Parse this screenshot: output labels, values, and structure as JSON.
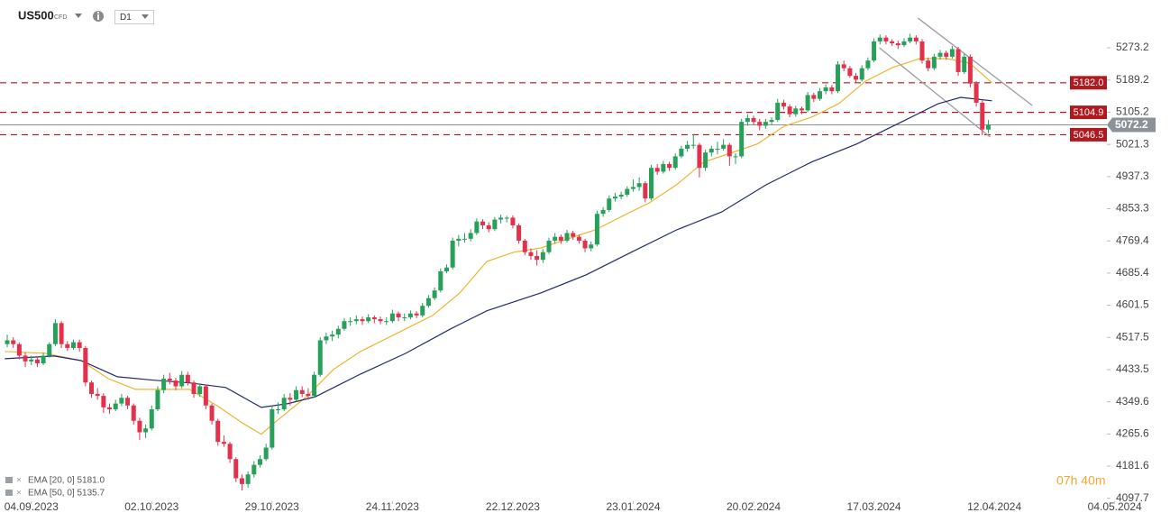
{
  "chart_data": {
    "type": "candlestick",
    "symbol": "US500",
    "instrument": "CFD",
    "timeframe": "D1",
    "countdown": "07h 40m",
    "up_color": "#27a05a",
    "down_color": "#e3314b",
    "xlim": [
      -1.2,
      182.7
    ],
    "ylim": [
      4090,
      5398
    ],
    "xticks": [
      {
        "value": 4,
        "label": "04.09.2023"
      },
      {
        "value": 24,
        "label": "02.10.2023"
      },
      {
        "value": 44,
        "label": "29.10.2023"
      },
      {
        "value": 64,
        "label": "24.11.2023"
      },
      {
        "value": 84,
        "label": "22.12.2023"
      },
      {
        "value": 104,
        "label": "23.01.2024"
      },
      {
        "value": 124,
        "label": "20.02.2024"
      },
      {
        "value": 144,
        "label": "17.03.2024"
      },
      {
        "value": 164,
        "label": "12.04.2024"
      },
      {
        "value": 184,
        "label": "04.05.2024"
      }
    ],
    "yticks": [
      5273.2,
      5189.2,
      5105.2,
      5021.3,
      4937.3,
      4853.3,
      4769.4,
      4685.4,
      4601.5,
      4517.5,
      4433.5,
      4349.6,
      4265.6,
      4181.6,
      4097.7
    ],
    "levels": [
      {
        "value": 5182,
        "label": "5182.0"
      },
      5104.9,
      5046.5
    ],
    "level_color": "#b0191e",
    "current_price": 5072.2,
    "current_color": "#8c9398",
    "trendline_color": "#9b9ea2",
    "trendlines": [
      {
        "x": [
          151.3,
          170.3
        ],
        "y": [
          5350.8,
          5122.8
        ]
      },
      {
        "x": [
          144.9,
          163.3
        ],
        "y": [
          5273.2,
          5040.5
        ]
      }
    ],
    "series": [
      {
        "name": "EMA [20, 0] 5181.0",
        "color": "#f0b432",
        "x": [
          -0.4,
          6.3,
          12.3,
          16.8,
          21.3,
          25.8,
          30.3,
          34.8,
          39.2,
          42.2,
          45.2,
          49.7,
          54.2,
          58.7,
          64.7,
          70.7,
          75.2,
          79.7,
          84.2,
          88.7,
          93.2,
          97.7,
          102.2,
          106.7,
          111.2,
          115.7,
          120.1,
          124.6,
          129.1,
          133.6,
          138.1,
          142.6,
          147.1,
          151.6,
          156.1,
          159.9,
          163.6
        ],
        "values": [
          4481,
          4476,
          4457,
          4410,
          4382,
          4382,
          4382,
          4340,
          4293,
          4265,
          4305,
          4363,
          4434,
          4481,
          4528,
          4575,
          4634,
          4716,
          4740,
          4751,
          4775,
          4798,
          4834,
          4869,
          4916,
          4975,
          4998,
          5022,
          5069,
          5092,
          5127,
          5186,
          5222,
          5245,
          5245,
          5233,
          5182
        ]
      },
      {
        "name": "EMA [50, 0] 5135.7",
        "color": "#232a6e",
        "x": [
          -0.4,
          7.8,
          12.3,
          18.3,
          24.3,
          30.3,
          36.3,
          42.2,
          46.7,
          51.2,
          58.7,
          66.2,
          73.7,
          79.7,
          88.7,
          96.2,
          103.7,
          111.2,
          118.7,
          126.1,
          133.6,
          141.1,
          148.6,
          154.6,
          158.4,
          161.3,
          163.6
        ],
        "values": [
          4462,
          4469,
          4457,
          4415,
          4406,
          4399,
          4387,
          4335,
          4345,
          4363,
          4422,
          4476,
          4540,
          4587,
          4634,
          4681,
          4740,
          4798,
          4845,
          4916,
          4975,
          5022,
          5080,
          5127,
          5144,
          5139,
          5135
        ]
      }
    ],
    "candles": [
      [
        4500,
        4525,
        4492,
        4510
      ],
      [
        4510,
        4518,
        4490,
        4500
      ],
      [
        4500,
        4505,
        4460,
        4470
      ],
      [
        4470,
        4478,
        4440,
        4455
      ],
      [
        4455,
        4470,
        4445,
        4460
      ],
      [
        4460,
        4468,
        4440,
        4450
      ],
      [
        4450,
        4478,
        4445,
        4470
      ],
      [
        4470,
        4505,
        4465,
        4500
      ],
      [
        4500,
        4565,
        4495,
        4555
      ],
      [
        4555,
        4560,
        4490,
        4500
      ],
      [
        4500,
        4508,
        4482,
        4490
      ],
      [
        4490,
        4512,
        4485,
        4505
      ],
      [
        4505,
        4512,
        4480,
        4490
      ],
      [
        4490,
        4495,
        4390,
        4400
      ],
      [
        4400,
        4405,
        4360,
        4370
      ],
      [
        4370,
        4385,
        4355,
        4365
      ],
      [
        4365,
        4372,
        4320,
        4335
      ],
      [
        4335,
        4345,
        4318,
        4330
      ],
      [
        4330,
        4355,
        4325,
        4345
      ],
      [
        4345,
        4370,
        4338,
        4360
      ],
      [
        4360,
        4365,
        4330,
        4340
      ],
      [
        4340,
        4345,
        4290,
        4300
      ],
      [
        4300,
        4308,
        4250,
        4270
      ],
      [
        4270,
        4290,
        4255,
        4280
      ],
      [
        4280,
        4340,
        4275,
        4330
      ],
      [
        4330,
        4390,
        4325,
        4380
      ],
      [
        4380,
        4420,
        4372,
        4410
      ],
      [
        4410,
        4425,
        4395,
        4405
      ],
      [
        4405,
        4412,
        4380,
        4390
      ],
      [
        4390,
        4430,
        4385,
        4420
      ],
      [
        4420,
        4428,
        4392,
        4400
      ],
      [
        4400,
        4405,
        4360,
        4370
      ],
      [
        4370,
        4398,
        4362,
        4390
      ],
      [
        4390,
        4395,
        4330,
        4340
      ],
      [
        4340,
        4345,
        4290,
        4300
      ],
      [
        4300,
        4305,
        4235,
        4245
      ],
      [
        4245,
        4262,
        4232,
        4240
      ],
      [
        4240,
        4245,
        4190,
        4200
      ],
      [
        4200,
        4205,
        4140,
        4150
      ],
      [
        4150,
        4160,
        4118,
        4135
      ],
      [
        4135,
        4168,
        4125,
        4160
      ],
      [
        4160,
        4195,
        4152,
        4185
      ],
      [
        4185,
        4210,
        4178,
        4200
      ],
      [
        4200,
        4240,
        4195,
        4230
      ],
      [
        4230,
        4340,
        4225,
        4330
      ],
      [
        4330,
        4348,
        4318,
        4330
      ],
      [
        4330,
        4370,
        4325,
        4360
      ],
      [
        4360,
        4372,
        4340,
        4355
      ],
      [
        4355,
        4390,
        4350,
        4380
      ],
      [
        4380,
        4390,
        4362,
        4370
      ],
      [
        4370,
        4385,
        4355,
        4365
      ],
      [
        4365,
        4428,
        4360,
        4420
      ],
      [
        4420,
        4518,
        4415,
        4510
      ],
      [
        4510,
        4530,
        4500,
        4520
      ],
      [
        4520,
        4535,
        4508,
        4525
      ],
      [
        4525,
        4548,
        4515,
        4540
      ],
      [
        4540,
        4568,
        4535,
        4560
      ],
      [
        4560,
        4570,
        4548,
        4560
      ],
      [
        4560,
        4575,
        4552,
        4565
      ],
      [
        4565,
        4572,
        4550,
        4560
      ],
      [
        4560,
        4578,
        4555,
        4570
      ],
      [
        4570,
        4575,
        4555,
        4565
      ],
      [
        4565,
        4572,
        4552,
        4560
      ],
      [
        4560,
        4570,
        4550,
        4560
      ],
      [
        4560,
        4590,
        4555,
        4580
      ],
      [
        4580,
        4585,
        4560,
        4570
      ],
      [
        4570,
        4580,
        4560,
        4570
      ],
      [
        4570,
        4588,
        4565,
        4580
      ],
      [
        4580,
        4586,
        4568,
        4575
      ],
      [
        4575,
        4608,
        4570,
        4600
      ],
      [
        4600,
        4628,
        4595,
        4620
      ],
      [
        4620,
        4648,
        4615,
        4640
      ],
      [
        4640,
        4698,
        4635,
        4690
      ],
      [
        4690,
        4708,
        4685,
        4700
      ],
      [
        4700,
        4778,
        4695,
        4770
      ],
      [
        4770,
        4785,
        4755,
        4775
      ],
      [
        4775,
        4790,
        4765,
        4775
      ],
      [
        4775,
        4800,
        4768,
        4790
      ],
      [
        4790,
        4828,
        4785,
        4820
      ],
      [
        4820,
        4826,
        4800,
        4810
      ],
      [
        4810,
        4818,
        4792,
        4800
      ],
      [
        4800,
        4832,
        4795,
        4825
      ],
      [
        4825,
        4838,
        4815,
        4830
      ],
      [
        4830,
        4835,
        4818,
        4830
      ],
      [
        4830,
        4836,
        4802,
        4810
      ],
      [
        4810,
        4815,
        4762,
        4770
      ],
      [
        4770,
        4775,
        4732,
        4740
      ],
      [
        4740,
        4750,
        4720,
        4730
      ],
      [
        4730,
        4745,
        4705,
        4720
      ],
      [
        4720,
        4748,
        4712,
        4740
      ],
      [
        4740,
        4778,
        4735,
        4770
      ],
      [
        4770,
        4790,
        4762,
        4780
      ],
      [
        4780,
        4786,
        4762,
        4770
      ],
      [
        4770,
        4798,
        4765,
        4790
      ],
      [
        4790,
        4796,
        4772,
        4780
      ],
      [
        4780,
        4786,
        4762,
        4770
      ],
      [
        4770,
        4775,
        4740,
        4750
      ],
      [
        4750,
        4768,
        4742,
        4760
      ],
      [
        4760,
        4848,
        4755,
        4840
      ],
      [
        4840,
        4858,
        4832,
        4850
      ],
      [
        4850,
        4888,
        4845,
        4880
      ],
      [
        4880,
        4895,
        4872,
        4885
      ],
      [
        4885,
        4898,
        4878,
        4890
      ],
      [
        4890,
        4912,
        4884,
        4905
      ],
      [
        4905,
        4930,
        4898,
        4910
      ],
      [
        4910,
        4935,
        4900,
        4920
      ],
      [
        4920,
        4925,
        4870,
        4880
      ],
      [
        4880,
        4968,
        4875,
        4960
      ],
      [
        4960,
        4970,
        4942,
        4950
      ],
      [
        4950,
        4978,
        4945,
        4970
      ],
      [
        4970,
        4976,
        4952,
        4960
      ],
      [
        4960,
        4998,
        4955,
        4990
      ],
      [
        4990,
        5018,
        4985,
        5010
      ],
      [
        5010,
        5030,
        5002,
        5020
      ],
      [
        5020,
        5048,
        5010,
        5020
      ],
      [
        5020,
        5025,
        4935,
        4960
      ],
      [
        4960,
        5008,
        4952,
        5000
      ],
      [
        5000,
        5018,
        4990,
        5010
      ],
      [
        5010,
        5028,
        4995,
        5010
      ],
      [
        5010,
        5035,
        5005,
        5020
      ],
      [
        5020,
        5025,
        4965,
        4990
      ],
      [
        4990,
        4998,
        4970,
        4990
      ],
      [
        4990,
        5088,
        4985,
        5080
      ],
      [
        5080,
        5100,
        5070,
        5090
      ],
      [
        5090,
        5096,
        5072,
        5080
      ],
      [
        5080,
        5088,
        5058,
        5070
      ],
      [
        5070,
        5088,
        5062,
        5080
      ],
      [
        5080,
        5092,
        5072,
        5085
      ],
      [
        5085,
        5140,
        5080,
        5130
      ],
      [
        5130,
        5138,
        5112,
        5120
      ],
      [
        5120,
        5126,
        5092,
        5100
      ],
      [
        5100,
        5122,
        5094,
        5115
      ],
      [
        5115,
        5120,
        5100,
        5110
      ],
      [
        5110,
        5158,
        5105,
        5150
      ],
      [
        5150,
        5156,
        5132,
        5140
      ],
      [
        5140,
        5168,
        5135,
        5160
      ],
      [
        5160,
        5178,
        5152,
        5170
      ],
      [
        5170,
        5176,
        5152,
        5160
      ],
      [
        5160,
        5238,
        5155,
        5230
      ],
      [
        5230,
        5240,
        5212,
        5220
      ],
      [
        5220,
        5226,
        5195,
        5200
      ],
      [
        5200,
        5208,
        5182,
        5190
      ],
      [
        5190,
        5228,
        5185,
        5220
      ],
      [
        5220,
        5248,
        5215,
        5240
      ],
      [
        5240,
        5298,
        5235,
        5290
      ],
      [
        5290,
        5308,
        5282,
        5300
      ],
      [
        5300,
        5306,
        5282,
        5290
      ],
      [
        5290,
        5296,
        5278,
        5285
      ],
      [
        5285,
        5292,
        5270,
        5280
      ],
      [
        5280,
        5298,
        5275,
        5290
      ],
      [
        5290,
        5310,
        5285,
        5300
      ],
      [
        5300,
        5306,
        5282,
        5290
      ],
      [
        5290,
        5296,
        5232,
        5240
      ],
      [
        5240,
        5248,
        5212,
        5220
      ],
      [
        5220,
        5258,
        5215,
        5250
      ],
      [
        5250,
        5268,
        5242,
        5260
      ],
      [
        5260,
        5266,
        5242,
        5250
      ],
      [
        5250,
        5278,
        5245,
        5270
      ],
      [
        5270,
        5276,
        5200,
        5210
      ],
      [
        5210,
        5258,
        5205,
        5250
      ],
      [
        5250,
        5256,
        5170,
        5180
      ],
      [
        5180,
        5186,
        5120,
        5130
      ],
      [
        5130,
        5138,
        5045,
        5060
      ],
      [
        5060,
        5085,
        5050,
        5072
      ]
    ]
  }
}
